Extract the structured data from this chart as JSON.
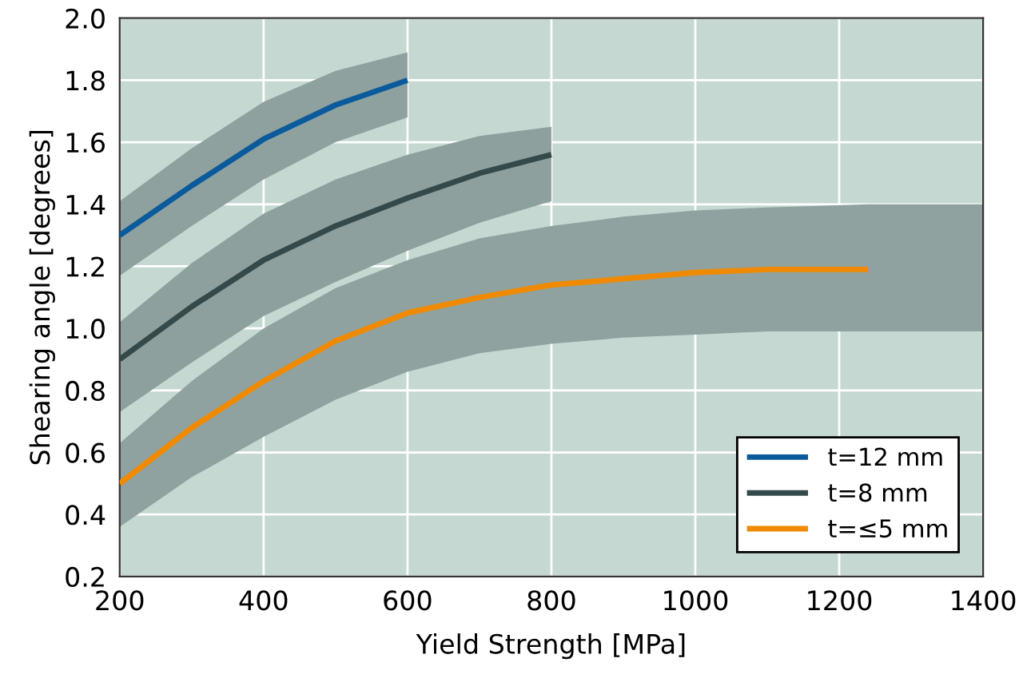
{
  "chart_data": {
    "type": "line",
    "xlabel": "Yield Strength [MPa]",
    "ylabel": "Shearing angle [degrees]",
    "xlim": [
      200,
      1400
    ],
    "ylim": [
      0.2,
      2.0
    ],
    "xticks": [
      200,
      400,
      600,
      800,
      1000,
      1200,
      1400
    ],
    "yticks": [
      {
        "value": 0.2,
        "label": "0.2"
      },
      {
        "value": 0.4,
        "label": "0.4"
      },
      {
        "value": 0.6,
        "label": "0.6"
      },
      {
        "value": 0.8,
        "label": "0.8"
      },
      {
        "value": 1.0,
        "label": "1.0"
      },
      {
        "value": 1.2,
        "label": "1.2"
      },
      {
        "value": 1.4,
        "label": "1.4"
      },
      {
        "value": 1.6,
        "label": "1.6"
      },
      {
        "value": 1.8,
        "label": "1.8"
      },
      {
        "value": 2.0,
        "label": "2.0"
      }
    ],
    "grid": true,
    "legend": "bottom right",
    "series": [
      {
        "name": "t=12 mm",
        "color": "#0a5a9c",
        "x": [
          200,
          300,
          400,
          500,
          600
        ],
        "values": [
          1.3,
          1.46,
          1.61,
          1.72,
          1.8
        ],
        "lower": [
          1.17,
          1.33,
          1.48,
          1.6,
          1.68
        ],
        "upper": [
          1.41,
          1.58,
          1.73,
          1.83,
          1.89
        ]
      },
      {
        "name": "t=8 mm",
        "color": "#34494a",
        "x": [
          200,
          300,
          400,
          500,
          600,
          700,
          800
        ],
        "values": [
          0.9,
          1.07,
          1.22,
          1.33,
          1.42,
          1.5,
          1.56
        ],
        "lower": [
          0.73,
          0.89,
          1.04,
          1.15,
          1.25,
          1.34,
          1.41
        ],
        "upper": [
          1.02,
          1.21,
          1.37,
          1.48,
          1.56,
          1.62,
          1.65
        ]
      },
      {
        "name": "t=≤5 mm",
        "color": "#f08a00",
        "x": [
          200,
          300,
          400,
          500,
          600,
          700,
          800,
          900,
          1000,
          1100,
          1240,
          1400
        ],
        "values": [
          0.5,
          0.68,
          0.83,
          0.96,
          1.05,
          1.1,
          1.14,
          1.16,
          1.18,
          1.19,
          1.19,
          null
        ],
        "lower": [
          0.36,
          0.52,
          0.65,
          0.77,
          0.86,
          0.92,
          0.95,
          0.97,
          0.98,
          0.99,
          0.99,
          0.99
        ],
        "upper": [
          0.63,
          0.83,
          1.0,
          1.13,
          1.22,
          1.29,
          1.33,
          1.36,
          1.38,
          1.39,
          1.4,
          1.4
        ]
      }
    ]
  }
}
